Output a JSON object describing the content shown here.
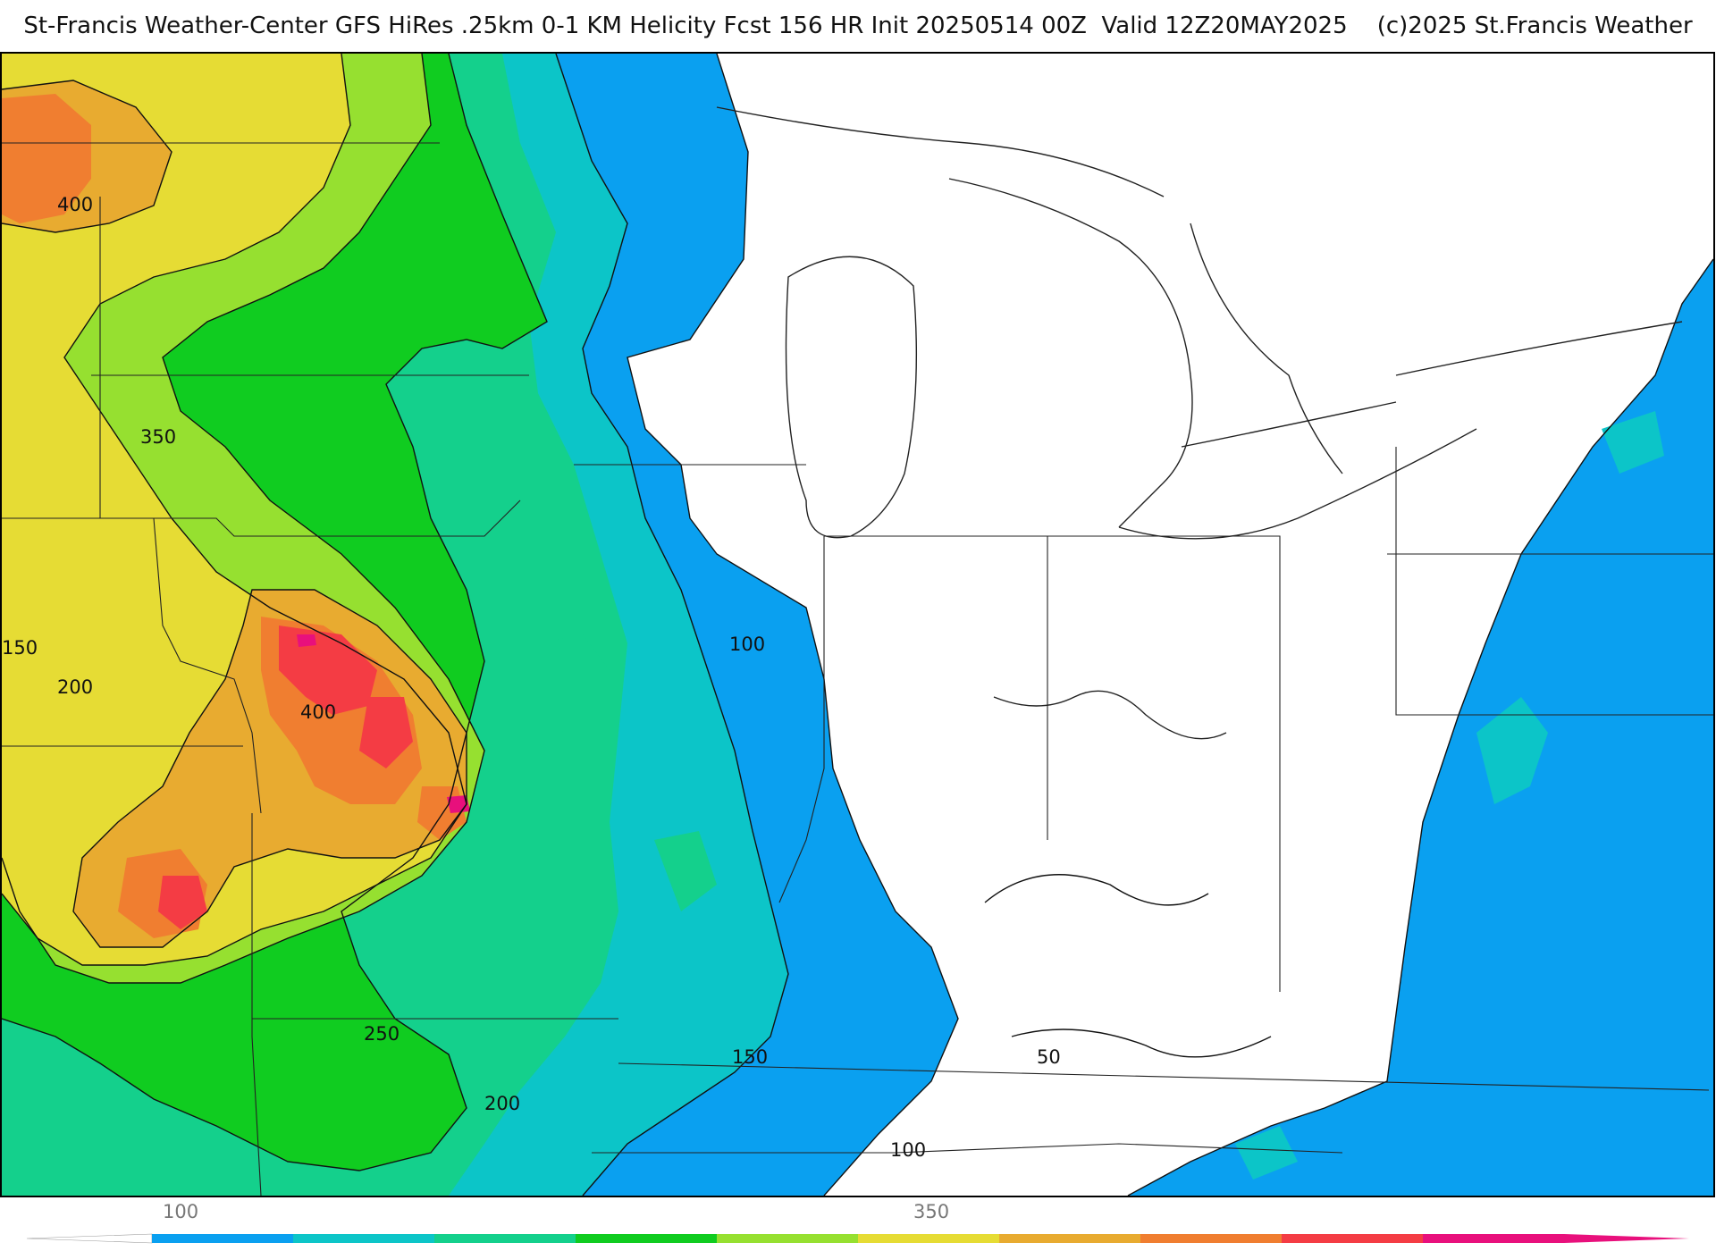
{
  "title": "St-Francis Weather-Center GFS HiRes .25km 0-1 KM Helicity Fcst 156 HR Init 20250514 00Z  Valid 12Z20MAY2025    (c)2025 St.Francis Weather",
  "contour_labels": [
    "400",
    "350",
    "150",
    "200",
    "400",
    "100",
    "250",
    "200",
    "150",
    "50",
    "100"
  ],
  "legend": {
    "tick_labels": [
      "100",
      "350"
    ],
    "colors": [
      "#0aa0f0",
      "#0cc5c8",
      "#14d08c",
      "#10cc20",
      "#96e030",
      "#e6dc34",
      "#e8ab30",
      "#f07e30",
      "#f43c44",
      "#e8107c"
    ]
  },
  "palette": {
    "none": "#ffffff",
    "blue": "#0aa0f0",
    "teal": "#0cc5c8",
    "seagreen": "#14d08c",
    "green": "#10cc20",
    "lime": "#96e030",
    "yellow": "#e6dc34",
    "gold": "#e8ab30",
    "orange": "#f07e30",
    "red": "#f43c44",
    "magenta": "#e8107c"
  }
}
